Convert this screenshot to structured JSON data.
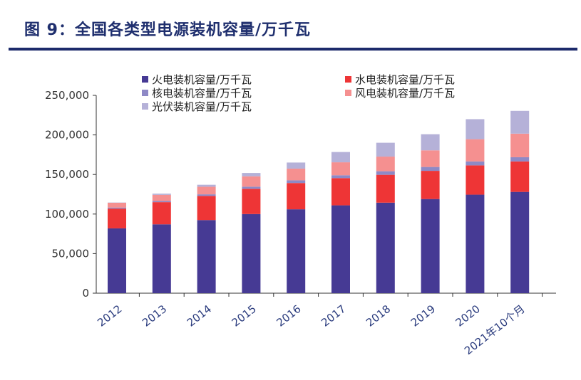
{
  "page": {
    "title": "图 9：全国各类型电源装机容量/万千瓦"
  },
  "colors": {
    "title": "#1f2f6e",
    "rule": "#1c2a6b",
    "axis": "#333333",
    "category_text": "#2b3c7e"
  },
  "chart_data": {
    "type": "bar",
    "stacked": true,
    "title": "全国各类型电源装机容量/万千瓦",
    "xlabel": "",
    "ylabel": "",
    "ylim": [
      0,
      250000
    ],
    "yticks": [
      0,
      50000,
      100000,
      150000,
      200000,
      250000
    ],
    "ytick_labels": [
      "0",
      "50,000",
      "100,000",
      "150,000",
      "200,000",
      "250,000"
    ],
    "categories": [
      "2012",
      "2013",
      "2014",
      "2015",
      "2016",
      "2017",
      "2018",
      "2019",
      "2020",
      "2021年10个月"
    ],
    "legend_position": "top",
    "series": [
      {
        "name": "火电装机容量/万千瓦",
        "color": "#463a94",
        "values": [
          81900,
          87000,
          92400,
          100000,
          106000,
          111000,
          114400,
          119000,
          124500,
          128000
        ]
      },
      {
        "name": "水电装机容量/万千瓦",
        "color": "#ee3536",
        "values": [
          25000,
          28000,
          30500,
          31900,
          33200,
          34400,
          35200,
          35600,
          37000,
          38500
        ]
      },
      {
        "name": "核电装机容量/万千瓦",
        "color": "#8e89c6",
        "values": [
          1300,
          1500,
          2000,
          2700,
          3400,
          3600,
          4500,
          4900,
          5000,
          5300
        ]
      },
      {
        "name": "风电装机容量/万千瓦",
        "color": "#f59090",
        "values": [
          6100,
          7700,
          9600,
          13100,
          14800,
          16400,
          18500,
          21000,
          28100,
          29800
        ]
      },
      {
        "name": "光伏装机容量/万千瓦",
        "color": "#b5b1d8",
        "values": [
          300,
          1600,
          2500,
          4200,
          7700,
          13000,
          17500,
          20400,
          25300,
          28800
        ]
      }
    ]
  }
}
